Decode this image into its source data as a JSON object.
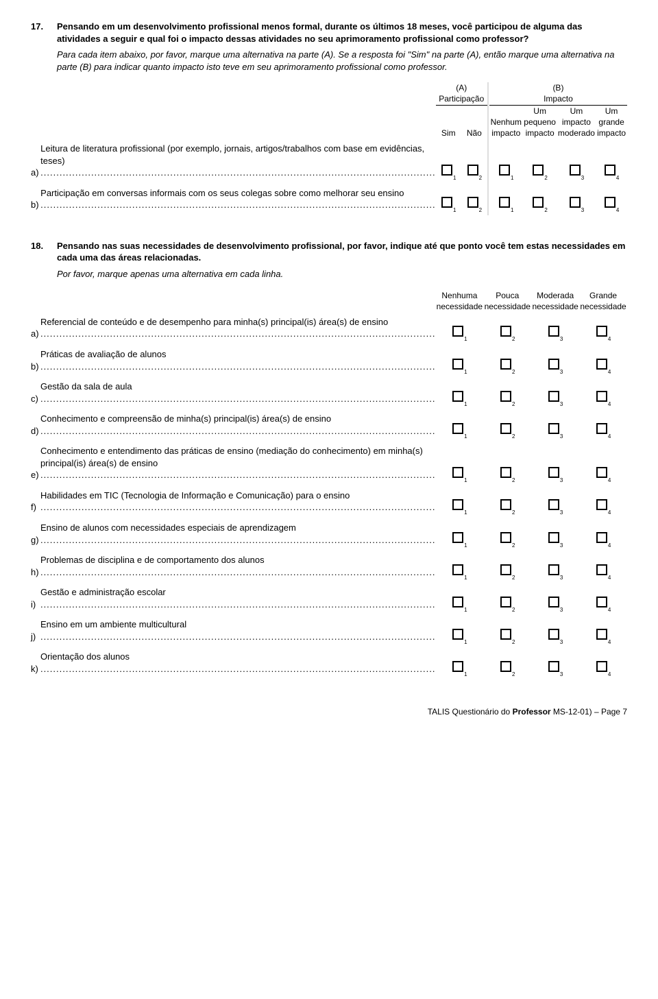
{
  "q17": {
    "number": "17.",
    "text": "Pensando em um desenvolvimento profissional menos formal, durante os últimos 18 meses, você participou de alguma das atividades a seguir e qual foi o impacto dessas atividades no seu aprimoramento profissional como professor?",
    "instr": "Para cada item abaixo, por favor, marque uma alternativa na parte (A). Se a resposta foi \"Sim\" na parte (A), então marque uma alternativa na parte (B) para indicar quanto impacto isto teve em seu aprimoramento profissional como professor.",
    "groupA_title": "(A)",
    "groupA_sub": "Participação",
    "groupB_title": "(B)",
    "groupB_sub": "Impacto",
    "colA1": "Sim",
    "colA2": "Não",
    "colB1": "Nenhum impacto",
    "colB2": "Um pequeno impacto",
    "colB3": "Um impacto moderado",
    "colB4": "Um grande impacto",
    "items": [
      {
        "letter": "a)",
        "label": "Leitura de literatura profissional (por exemplo, jornais, artigos/trabalhos com base em evidências, teses)"
      },
      {
        "letter": "b)",
        "label": "Participação em conversas informais com os seus colegas sobre como melhorar seu ensino"
      }
    ]
  },
  "q18": {
    "number": "18.",
    "text": "Pensando nas suas necessidades de desenvolvimento profissional, por favor, indique até que ponto você tem estas necessidades em cada uma das áreas relacionadas.",
    "instr": "Por favor, marque apenas uma alternativa em cada linha.",
    "col1": "Nenhuma necessidade",
    "col2": "Pouca necessidade",
    "col3": "Moderada necessidade",
    "col4": "Grande necessidade",
    "items": [
      {
        "letter": "a)",
        "label": "Referencial de conteúdo e de desempenho para minha(s) principal(is) área(s) de ensino"
      },
      {
        "letter": "b)",
        "label": "Práticas de avaliação de alunos"
      },
      {
        "letter": "c)",
        "label": "Gestão da sala de aula"
      },
      {
        "letter": "d)",
        "label": "Conhecimento e compreensão de minha(s) principal(is) área(s) de ensino"
      },
      {
        "letter": "e)",
        "label": "Conhecimento e entendimento das práticas de ensino (mediação do conhecimento) em minha(s) principal(is) área(s) de ensino"
      },
      {
        "letter": "f)",
        "label": "Habilidades em TIC (Tecnologia de Informação e Comunicação) para o ensino"
      },
      {
        "letter": "g)",
        "label": "Ensino de alunos com necessidades especiais de aprendizagem"
      },
      {
        "letter": "h)",
        "label": "Problemas de disciplina e de comportamento dos alunos"
      },
      {
        "letter": "i)",
        "label": "Gestão e administração escolar"
      },
      {
        "letter": "j)",
        "label": "Ensino em um ambiente multicultural"
      },
      {
        "letter": "k)",
        "label": "Orientação dos alunos"
      }
    ]
  },
  "footer_prefix": "TALIS Questionário do ",
  "footer_bold": "Professor",
  "footer_suffix": " MS-12-01) – Page 7",
  "checkbox_subs": {
    "s1": "1",
    "s2": "2",
    "s3": "3",
    "s4": "4"
  }
}
